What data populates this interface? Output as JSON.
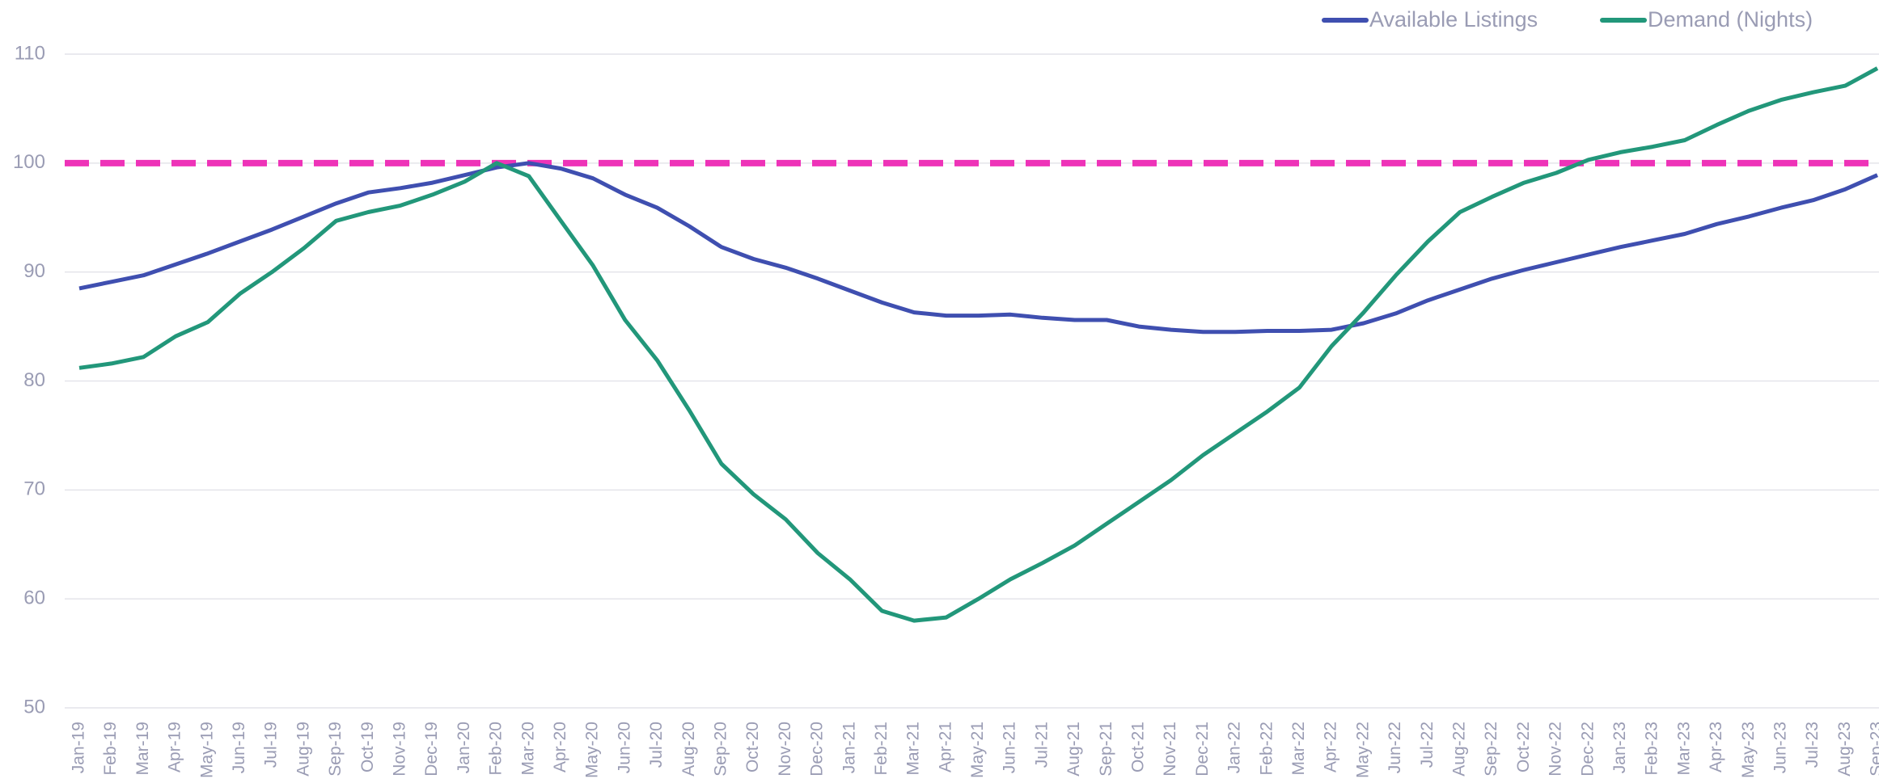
{
  "chart_data": {
    "type": "line",
    "categories": [
      "Jan-19",
      "Feb-19",
      "Mar-19",
      "Apr-19",
      "May-19",
      "Jun-19",
      "Jul-19",
      "Aug-19",
      "Sep-19",
      "Oct-19",
      "Nov-19",
      "Dec-19",
      "Jan-20",
      "Feb-20",
      "Mar-20",
      "Apr-20",
      "May-20",
      "Jun-20",
      "Jul-20",
      "Aug-20",
      "Sep-20",
      "Oct-20",
      "Nov-20",
      "Dec-20",
      "Jan-21",
      "Feb-21",
      "Mar-21",
      "Apr-21",
      "May-21",
      "Jun-21",
      "Jul-21",
      "Aug-21",
      "Sep-21",
      "Oct-21",
      "Nov-21",
      "Dec-21",
      "Jan-22",
      "Feb-22",
      "Mar-22",
      "Apr-22",
      "May-22",
      "Jun-22",
      "Jul-22",
      "Aug-22",
      "Sep-22",
      "Oct-22",
      "Nov-22",
      "Dec-22",
      "Jan-23",
      "Feb-23",
      "Mar-23",
      "Apr-23",
      "May-23",
      "Jun-23",
      "Jul-23",
      "Aug-23",
      "Sep-23"
    ],
    "series": [
      {
        "name": "Available Listings",
        "color": "#3f4fb0",
        "values": [
          88.5,
          89.1,
          89.7,
          90.7,
          91.7,
          92.8,
          93.9,
          95.1,
          96.3,
          97.3,
          97.7,
          98.2,
          98.9,
          99.6,
          100,
          99.5,
          98.6,
          97.1,
          95.9,
          94.2,
          92.3,
          91.2,
          90.4,
          89.4,
          88.3,
          87.2,
          86.3,
          86.0,
          86.0,
          86.1,
          85.8,
          85.6,
          85.6,
          85.0,
          84.7,
          84.5,
          84.5,
          84.6,
          84.6,
          84.7,
          85.3,
          86.2,
          87.4,
          88.4,
          89.4,
          90.2,
          90.9,
          91.6,
          92.3,
          92.9,
          93.5,
          94.4,
          95.1,
          95.9,
          96.6,
          97.6,
          98.9
        ]
      },
      {
        "name": "Demand (Nights)",
        "color": "#22977a",
        "values": [
          81.2,
          81.6,
          82.2,
          84.1,
          85.4,
          88.0,
          90.0,
          92.2,
          94.7,
          95.5,
          96.1,
          97.1,
          98.3,
          100,
          98.8,
          94.7,
          90.6,
          85.6,
          81.9,
          77.3,
          72.4,
          69.6,
          67.3,
          64.2,
          61.8,
          58.9,
          58.0,
          58.3,
          60.0,
          61.8,
          63.3,
          64.9,
          66.9,
          68.9,
          70.9,
          73.2,
          75.2,
          77.2,
          79.4,
          83.2,
          86.3,
          89.7,
          92.8,
          95.5,
          96.9,
          98.2,
          99.1,
          100.3,
          101.0,
          101.5,
          102.1,
          103.5,
          104.8,
          105.8,
          106.5,
          107.1,
          108.7
        ]
      }
    ],
    "reference_line": {
      "value": 100,
      "color": "#ee33b8"
    },
    "ylim": [
      50,
      110
    ],
    "yticks": [
      50,
      60,
      70,
      80,
      90,
      100,
      110
    ],
    "grid": true,
    "legend": "top-right"
  }
}
